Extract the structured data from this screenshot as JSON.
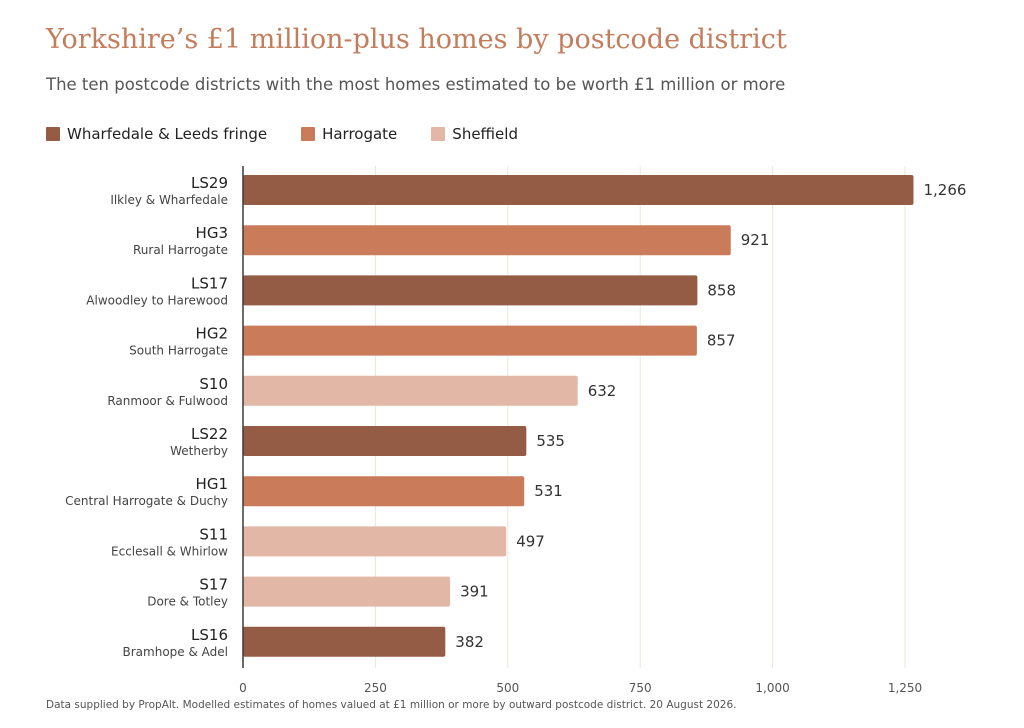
{
  "chart_data": {
    "type": "bar",
    "orientation": "horizontal",
    "title": "Yorkshire’s £1 million-plus homes by postcode district",
    "subtitle": "The ten postcode districts with the most homes estimated to be worth £1 million or more",
    "legend": {
      "placement": "top-left",
      "entries": [
        {
          "name": "Wharfedale & Leeds fringe",
          "color": "#955c45"
        },
        {
          "name": "Harrogate",
          "color": "#c97b5a"
        },
        {
          "name": "Sheffield",
          "color": "#e2b7a6"
        }
      ]
    },
    "categories": [
      {
        "code": "LS29",
        "name": "Ilkley & Wharfedale",
        "group": 0,
        "value": 1266,
        "label": "1,266"
      },
      {
        "code": "HG3",
        "name": "Rural Harrogate",
        "group": 1,
        "value": 921,
        "label": "921"
      },
      {
        "code": "LS17",
        "name": "Alwoodley to Harewood",
        "group": 0,
        "value": 858,
        "label": "858"
      },
      {
        "code": "HG2",
        "name": "South Harrogate",
        "group": 1,
        "value": 857,
        "label": "857"
      },
      {
        "code": "S10",
        "name": "Ranmoor & Fulwood",
        "group": 2,
        "value": 632,
        "label": "632"
      },
      {
        "code": "LS22",
        "name": "Wetherby",
        "group": 0,
        "value": 535,
        "label": "535"
      },
      {
        "code": "HG1",
        "name": "Central Harrogate & Duchy",
        "group": 1,
        "value": 531,
        "label": "531"
      },
      {
        "code": "S11",
        "name": "Ecclesall & Whirlow",
        "group": 2,
        "value": 497,
        "label": "497"
      },
      {
        "code": "S17",
        "name": "Dore & Totley",
        "group": 2,
        "value": 391,
        "label": "391"
      },
      {
        "code": "LS16",
        "name": "Bramhope & Adel",
        "group": 0,
        "value": 382,
        "label": "382"
      }
    ],
    "x_axis": {
      "min": 0,
      "max": 1250,
      "ticks": [
        0,
        250,
        500,
        750,
        1000,
        1250
      ],
      "tick_labels": [
        "0",
        "250",
        "500",
        "750",
        "1,000",
        "1,250"
      ],
      "grid": true
    },
    "footnote": "Data supplied by PropAlt. Modelled estimates of homes valued at £1 million or more by outward postcode district. 20 August 2026."
  }
}
